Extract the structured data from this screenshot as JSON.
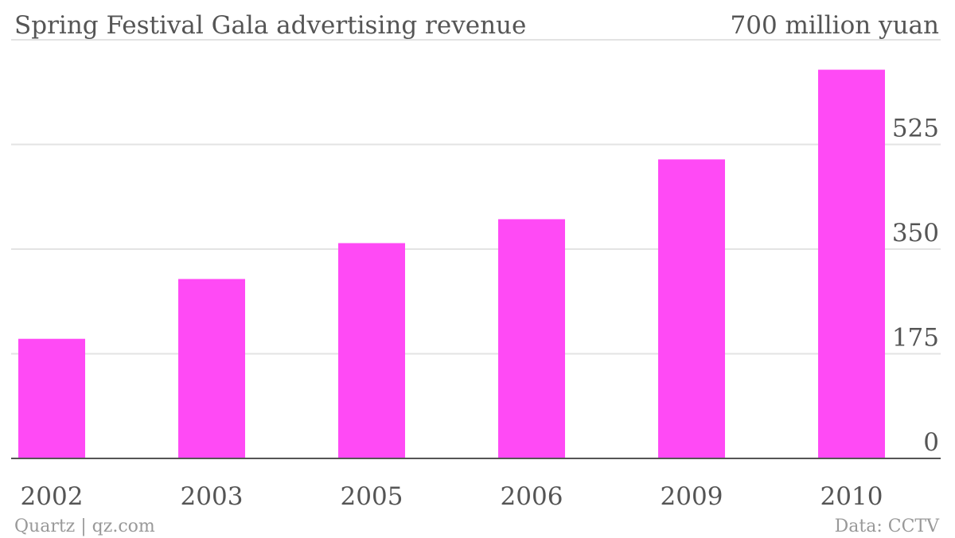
{
  "chart_data": {
    "type": "bar",
    "title": "Spring Festival Gala advertising revenue",
    "unit_label": "700 million yuan",
    "categories": [
      "2002",
      "2003",
      "2005",
      "2006",
      "2009",
      "2010"
    ],
    "values": [
      200,
      300,
      360,
      400,
      500,
      650
    ],
    "ylim": [
      0,
      700
    ],
    "yticks": [
      0,
      175,
      350,
      525
    ],
    "y_axis_position": "right",
    "grid": true,
    "bar_color": "#ff4af5"
  },
  "footer": {
    "source_left": "Quartz | qz.com",
    "source_right": "Data: CCTV"
  }
}
